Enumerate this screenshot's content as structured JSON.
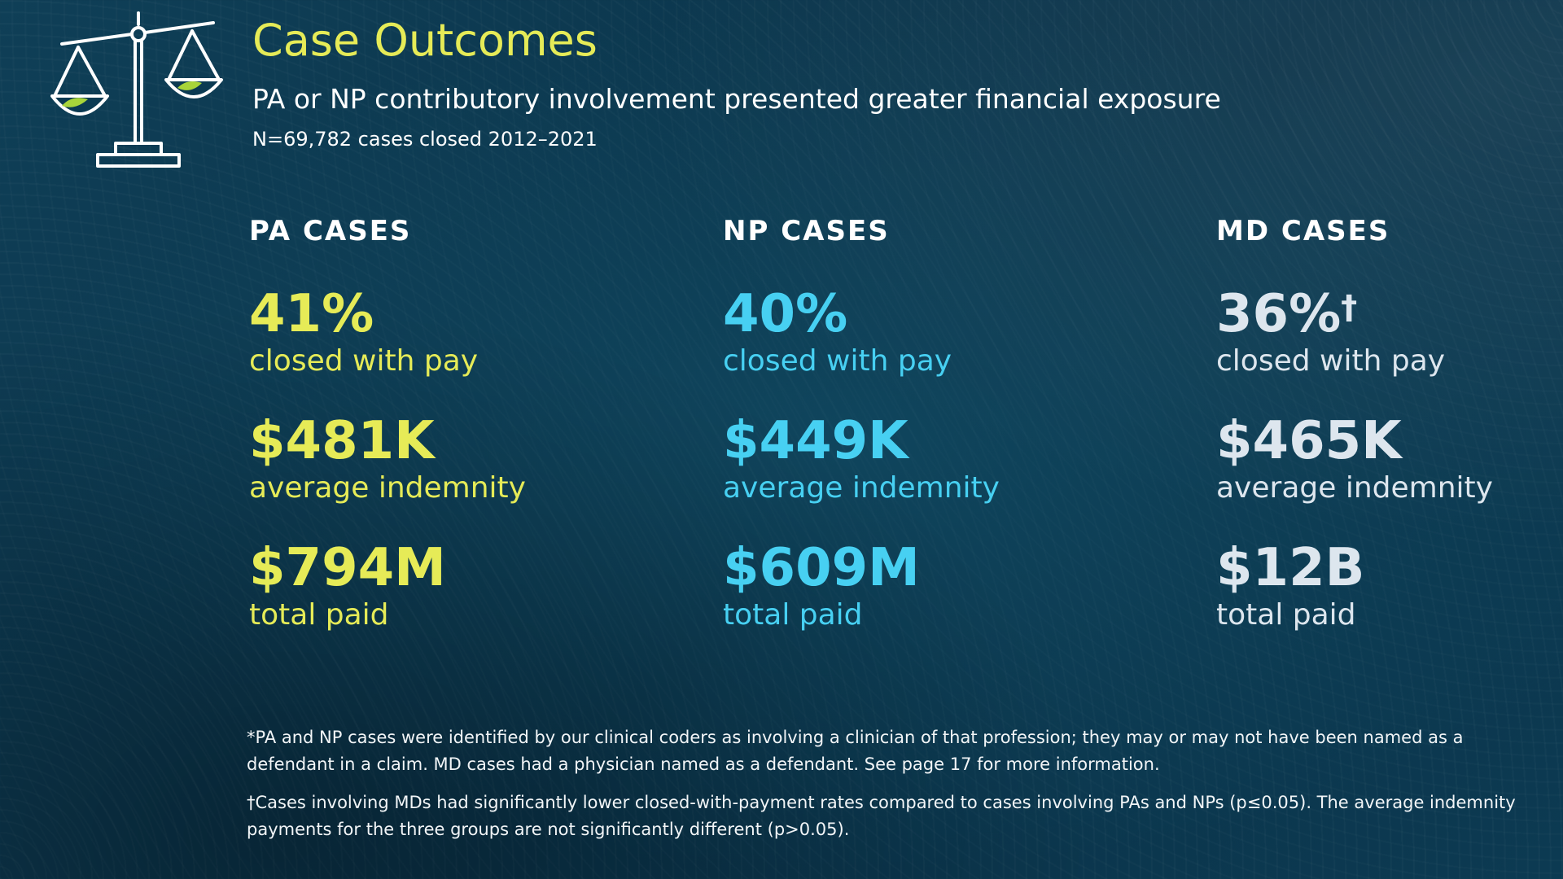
{
  "header": {
    "title": "Case Outcomes",
    "subtitle": "PA or NP contributory involvement presented greater financial exposure",
    "note": "N=69,782 cases closed 2012–2021"
  },
  "columns": [
    {
      "heading": "PA CASES",
      "closed_pct": "41%",
      "closed_label": "closed with pay",
      "indemnity": "$481K",
      "indemnity_label": "average indemnity",
      "total": "$794M",
      "total_label": "total paid"
    },
    {
      "heading": "NP CASES",
      "closed_pct": "40%",
      "closed_label": "closed with pay",
      "indemnity": "$449K",
      "indemnity_label": "average indemnity",
      "total": "$609M",
      "total_label": "total paid"
    },
    {
      "heading": "MD CASES",
      "closed_pct": "36%",
      "closed_mark": "†",
      "closed_label": "closed with pay",
      "indemnity": "$465K",
      "indemnity_label": "average indemnity",
      "total": "$12B",
      "total_label": "total paid"
    }
  ],
  "footnotes": {
    "star": "*PA and NP cases were identified by our clinical coders as involving a clinician of that profession; they may or may not have been named as a defendant in a claim. MD cases had a physician named as a defendant. See page 17 for more information.",
    "dagger": "†Cases involving MDs had significantly lower closed-with-payment rates compared to cases involving PAs and NPs (p≤0.05). The average indemnity payments for the three groups are not significantly different (p>0.05)."
  },
  "colors": {
    "accent_yellow": "#e6eb57",
    "accent_cyan": "#47d0f2",
    "accent_light": "#dde6ee",
    "leaf_green": "#a8d53a",
    "background": "#0b3a52"
  },
  "icons": {
    "logo": "scales-of-justice-icon"
  }
}
